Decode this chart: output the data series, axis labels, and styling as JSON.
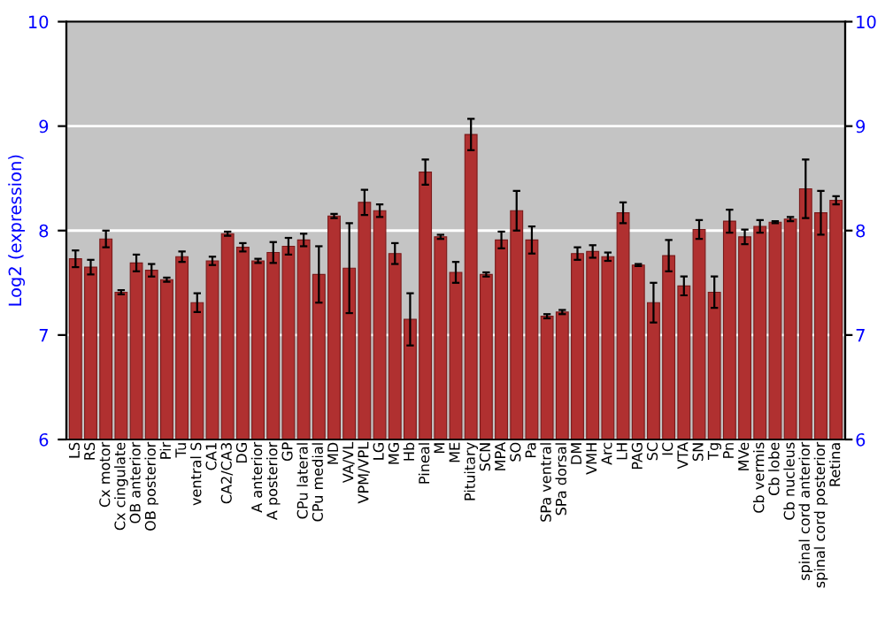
{
  "chart_data": {
    "type": "bar",
    "ylabel": "Log2 (expression)",
    "categories": [
      "LS",
      "RS",
      "Cx motor",
      "Cx cingulate",
      "OB anterior",
      "OB posterior",
      "Pir",
      "Tu",
      "ventral S",
      "CA1",
      "CA2/CA3",
      "DG",
      "A anterior",
      "A posterior",
      "GP",
      "CPu lateral",
      "CPu medial",
      "MD",
      "VA/VL",
      "VPM/VPL",
      "LG",
      "MG",
      "Hb",
      "Pineal",
      "M",
      "ME",
      "Pituitary",
      "SCN",
      "MPA",
      "SO",
      "Pa",
      "SPa ventral",
      "SPa dorsal",
      "DM",
      "VMH",
      "Arc",
      "LH",
      "PAG",
      "SC",
      "IC",
      "VTA",
      "SN",
      "Tg",
      "Pn",
      "MVe",
      "Cb vermis",
      "Cb lobe",
      "Cb nucleus",
      "spinal cord anterior",
      "spinal cord posterior",
      "Retina"
    ],
    "values": [
      7.73,
      7.65,
      7.92,
      7.41,
      7.69,
      7.62,
      7.53,
      7.75,
      7.31,
      7.71,
      7.97,
      7.84,
      7.71,
      7.79,
      7.85,
      7.91,
      7.58,
      8.14,
      7.64,
      8.27,
      8.19,
      7.78,
      7.15,
      8.56,
      7.94,
      7.6,
      8.92,
      7.58,
      7.91,
      8.19,
      7.91,
      7.18,
      7.22,
      7.78,
      7.8,
      7.75,
      8.17,
      7.67,
      7.31,
      7.76,
      7.47,
      8.01,
      7.41,
      8.09,
      7.94,
      8.04,
      8.08,
      8.11,
      8.4,
      8.17,
      8.29
    ],
    "errors": [
      0.08,
      0.07,
      0.08,
      0.02,
      0.08,
      0.06,
      0.02,
      0.05,
      0.09,
      0.04,
      0.02,
      0.04,
      0.02,
      0.1,
      0.08,
      0.06,
      0.27,
      0.02,
      0.43,
      0.12,
      0.06,
      0.1,
      0.25,
      0.12,
      0.02,
      0.1,
      0.15,
      0.02,
      0.08,
      0.19,
      0.13,
      0.02,
      0.02,
      0.06,
      0.06,
      0.04,
      0.1,
      0.01,
      0.19,
      0.15,
      0.09,
      0.09,
      0.15,
      0.11,
      0.07,
      0.06,
      0.01,
      0.02,
      0.28,
      0.21,
      0.04
    ],
    "color": "#b03030",
    "ylim": [
      6,
      10
    ],
    "yticks": [
      6,
      7,
      8,
      9,
      10
    ],
    "y2lim": [
      6,
      10
    ],
    "y2ticks": [
      6,
      7,
      8,
      9,
      10
    ],
    "grid": "y"
  }
}
